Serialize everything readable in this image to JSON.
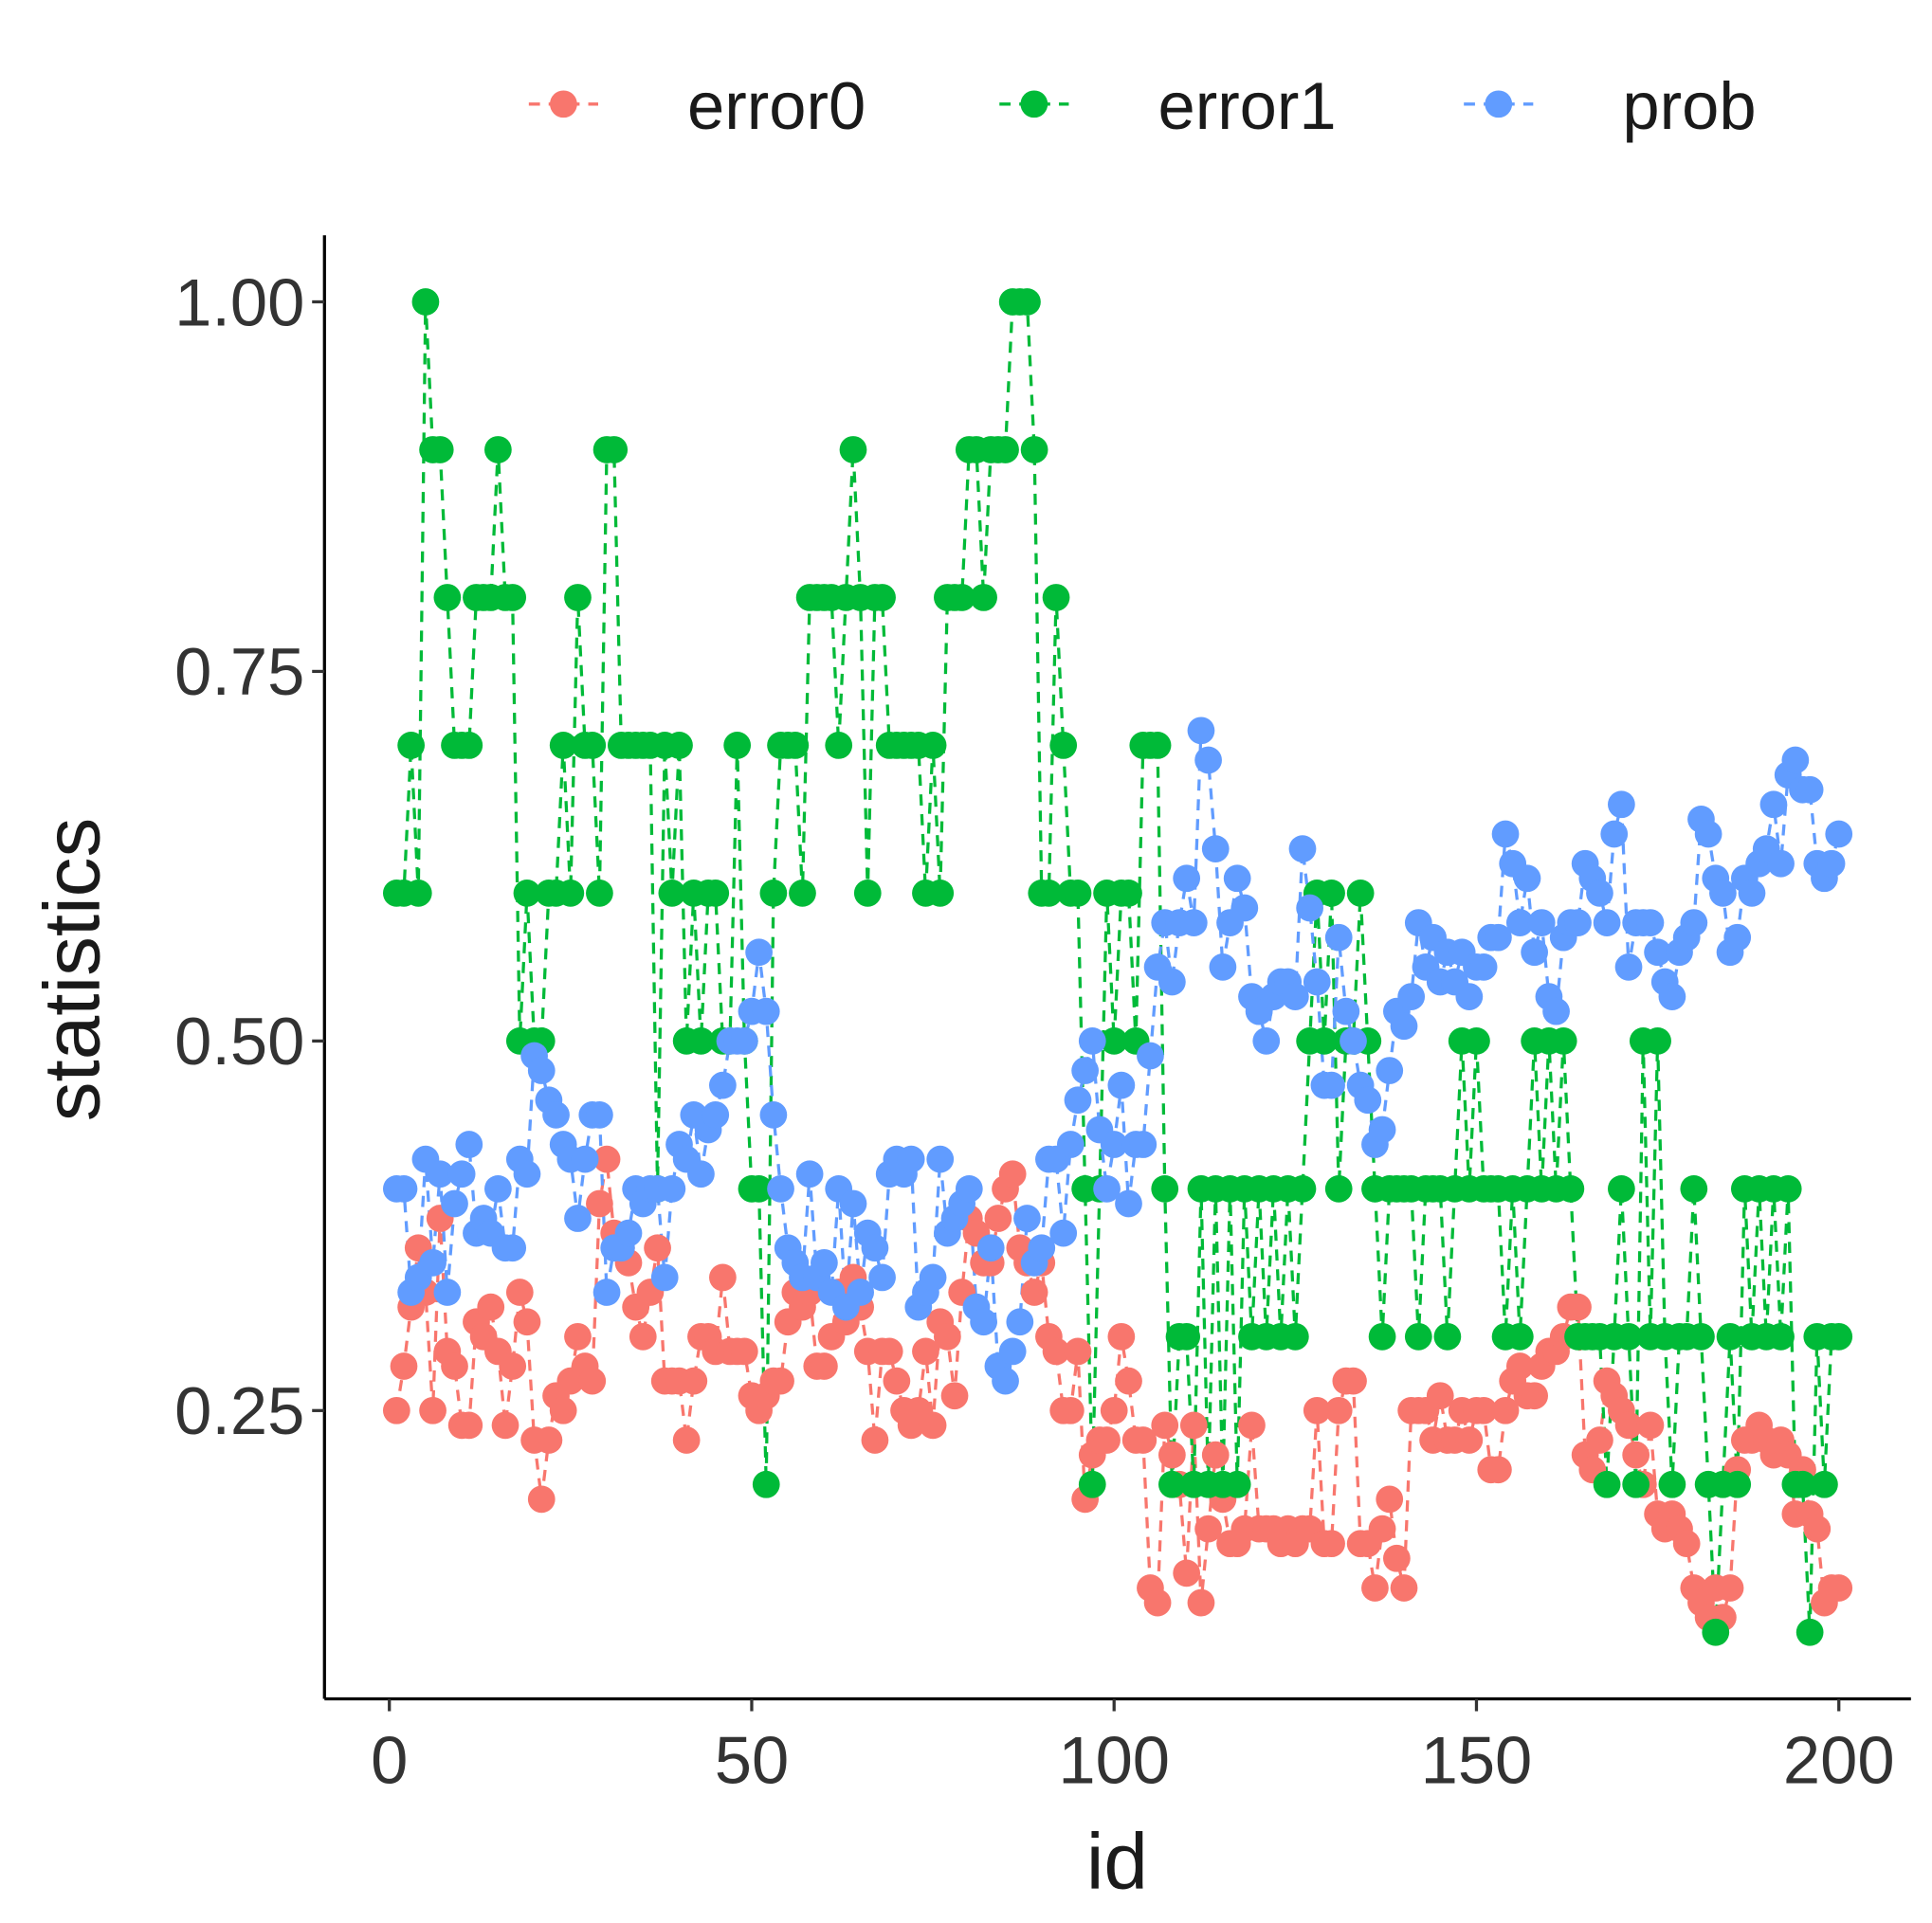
{
  "chart_data": {
    "type": "line",
    "x_label": "id",
    "y_label": "statistics",
    "x": [
      1,
      2,
      3,
      4,
      5,
      6,
      7,
      8,
      9,
      10,
      11,
      12,
      13,
      14,
      15,
      16,
      17,
      18,
      19,
      20,
      21,
      22,
      23,
      24,
      25,
      26,
      27,
      28,
      29,
      30,
      31,
      32,
      33,
      34,
      35,
      36,
      37,
      38,
      39,
      40,
      41,
      42,
      43,
      44,
      45,
      46,
      47,
      48,
      49,
      50,
      51,
      52,
      53,
      54,
      55,
      56,
      57,
      58,
      59,
      60,
      61,
      62,
      63,
      64,
      65,
      66,
      67,
      68,
      69,
      70,
      71,
      72,
      73,
      74,
      75,
      76,
      77,
      78,
      79,
      80,
      81,
      82,
      83,
      84,
      85,
      86,
      87,
      88,
      89,
      90,
      91,
      92,
      93,
      94,
      95,
      96,
      97,
      98,
      99,
      100,
      101,
      102,
      103,
      104,
      105,
      106,
      107,
      108,
      109,
      110,
      111,
      112,
      113,
      114,
      115,
      116,
      117,
      118,
      119,
      120,
      121,
      122,
      123,
      124,
      125,
      126,
      127,
      128,
      129,
      130,
      131,
      132,
      133,
      134,
      135,
      136,
      137,
      138,
      139,
      140,
      141,
      142,
      143,
      144,
      145,
      146,
      147,
      148,
      149,
      150,
      151,
      152,
      153,
      154,
      155,
      156,
      157,
      158,
      159,
      160,
      161,
      162,
      163,
      164,
      165,
      166,
      167,
      168,
      169,
      170,
      171,
      172,
      173,
      174,
      175,
      176,
      177,
      178,
      179,
      180,
      181,
      182,
      183,
      184,
      185,
      186,
      187,
      188,
      189,
      190,
      191,
      192,
      193,
      194,
      195,
      196,
      197,
      198,
      199,
      200
    ],
    "series": [
      {
        "name": "error0",
        "color": "#F8766D",
        "values": [
          0.25,
          0.28,
          0.32,
          0.36,
          0.33,
          0.25,
          0.38,
          0.29,
          0.28,
          0.24,
          0.24,
          0.31,
          0.3,
          0.32,
          0.29,
          0.24,
          0.28,
          0.33,
          0.31,
          0.23,
          0.19,
          0.23,
          0.26,
          0.25,
          0.27,
          0.3,
          0.28,
          0.27,
          0.39,
          0.42,
          0.37,
          0.36,
          0.35,
          0.32,
          0.3,
          0.33,
          0.36,
          0.27,
          0.27,
          0.27,
          0.23,
          0.27,
          0.3,
          0.3,
          0.29,
          0.34,
          0.29,
          0.29,
          0.29,
          0.26,
          0.25,
          0.26,
          0.27,
          0.27,
          0.31,
          0.33,
          0.32,
          0.33,
          0.28,
          0.28,
          0.3,
          0.33,
          0.31,
          0.34,
          0.32,
          0.29,
          0.23,
          0.29,
          0.29,
          0.27,
          0.25,
          0.24,
          0.25,
          0.29,
          0.24,
          0.31,
          0.3,
          0.26,
          0.33,
          0.38,
          0.37,
          0.35,
          0.35,
          0.38,
          0.4,
          0.41,
          0.36,
          0.35,
          0.33,
          0.35,
          0.3,
          0.29,
          0.25,
          0.25,
          0.29,
          0.19,
          0.22,
          0.23,
          0.23,
          0.25,
          0.3,
          0.27,
          0.23,
          0.23,
          0.13,
          0.12,
          0.24,
          0.22,
          0.2,
          0.14,
          0.24,
          0.12,
          0.17,
          0.22,
          0.19,
          0.16,
          0.16,
          0.17,
          0.24,
          0.17,
          0.17,
          0.17,
          0.16,
          0.17,
          0.16,
          0.17,
          0.17,
          0.25,
          0.16,
          0.16,
          0.25,
          0.27,
          0.27,
          0.16,
          0.16,
          0.13,
          0.17,
          0.19,
          0.15,
          0.13,
          0.25,
          0.25,
          0.25,
          0.23,
          0.26,
          0.23,
          0.23,
          0.25,
          0.23,
          0.25,
          0.25,
          0.21,
          0.21,
          0.25,
          0.27,
          0.28,
          0.26,
          0.26,
          0.28,
          0.29,
          0.29,
          0.3,
          0.32,
          0.32,
          0.22,
          0.21,
          0.23,
          0.27,
          0.26,
          0.25,
          0.24,
          0.22,
          0.2,
          0.24,
          0.18,
          0.17,
          0.18,
          0.17,
          0.16,
          0.13,
          0.12,
          0.11,
          0.13,
          0.11,
          0.13,
          0.21,
          0.23,
          0.23,
          0.24,
          0.23,
          0.22,
          0.23,
          0.22,
          0.18,
          0.21,
          0.18,
          0.17,
          0.12,
          0.13,
          0.13
        ]
      },
      {
        "name": "error1",
        "color": "#00BA38",
        "values": [
          0.6,
          0.6,
          0.7,
          0.6,
          1.0,
          0.9,
          0.9,
          0.8,
          0.7,
          0.7,
          0.7,
          0.8,
          0.8,
          0.8,
          0.9,
          0.8,
          0.8,
          0.5,
          0.6,
          0.5,
          0.5,
          0.6,
          0.6,
          0.7,
          0.6,
          0.8,
          0.7,
          0.7,
          0.6,
          0.9,
          0.9,
          0.7,
          0.7,
          0.7,
          0.7,
          0.7,
          0.4,
          0.7,
          0.6,
          0.7,
          0.5,
          0.6,
          0.5,
          0.6,
          0.6,
          0.5,
          0.5,
          0.7,
          0.5,
          0.4,
          0.4,
          0.2,
          0.6,
          0.7,
          0.7,
          0.7,
          0.6,
          0.8,
          0.8,
          0.8,
          0.8,
          0.7,
          0.8,
          0.9,
          0.8,
          0.6,
          0.8,
          0.8,
          0.7,
          0.7,
          0.7,
          0.7,
          0.7,
          0.6,
          0.7,
          0.6,
          0.8,
          0.8,
          0.8,
          0.9,
          0.9,
          0.8,
          0.9,
          0.9,
          0.9,
          1.0,
          1.0,
          1.0,
          0.9,
          0.6,
          0.6,
          0.8,
          0.7,
          0.6,
          0.6,
          0.4,
          0.2,
          0.4,
          0.6,
          0.5,
          0.6,
          0.6,
          0.5,
          0.7,
          0.7,
          0.7,
          0.4,
          0.2,
          0.3,
          0.3,
          0.2,
          0.4,
          0.2,
          0.4,
          0.2,
          0.4,
          0.2,
          0.4,
          0.3,
          0.4,
          0.3,
          0.4,
          0.3,
          0.4,
          0.3,
          0.4,
          0.5,
          0.6,
          0.5,
          0.6,
          0.4,
          0.5,
          0.5,
          0.6,
          0.5,
          0.4,
          0.3,
          0.4,
          0.4,
          0.4,
          0.4,
          0.3,
          0.4,
          0.4,
          0.4,
          0.3,
          0.4,
          0.5,
          0.4,
          0.5,
          0.4,
          0.4,
          0.4,
          0.3,
          0.4,
          0.3,
          0.4,
          0.5,
          0.4,
          0.5,
          0.4,
          0.5,
          0.4,
          0.3,
          0.3,
          0.3,
          0.3,
          0.2,
          0.3,
          0.4,
          0.3,
          0.2,
          0.5,
          0.3,
          0.5,
          0.3,
          0.2,
          0.3,
          0.3,
          0.4,
          0.3,
          0.2,
          0.1,
          0.2,
          0.3,
          0.2,
          0.4,
          0.3,
          0.4,
          0.3,
          0.4,
          0.3,
          0.4,
          0.2,
          0.2,
          0.1,
          0.3,
          0.2,
          0.3,
          0.3
        ]
      },
      {
        "name": "prob",
        "color": "#619CFF",
        "values": [
          0.4,
          0.4,
          0.33,
          0.34,
          0.42,
          0.35,
          0.41,
          0.33,
          0.39,
          0.41,
          0.43,
          0.37,
          0.38,
          0.37,
          0.4,
          0.36,
          0.36,
          0.42,
          0.41,
          0.49,
          0.48,
          0.46,
          0.45,
          0.43,
          0.42,
          0.38,
          0.42,
          0.45,
          0.45,
          0.33,
          0.36,
          0.36,
          0.37,
          0.4,
          0.39,
          0.4,
          0.4,
          0.34,
          0.4,
          0.43,
          0.42,
          0.45,
          0.41,
          0.44,
          0.45,
          0.47,
          0.5,
          0.5,
          0.5,
          0.52,
          0.56,
          0.52,
          0.45,
          0.4,
          0.36,
          0.35,
          0.34,
          0.41,
          0.34,
          0.35,
          0.33,
          0.4,
          0.32,
          0.39,
          0.33,
          0.37,
          0.36,
          0.34,
          0.41,
          0.42,
          0.41,
          0.42,
          0.32,
          0.33,
          0.34,
          0.42,
          0.37,
          0.38,
          0.39,
          0.4,
          0.32,
          0.31,
          0.36,
          0.28,
          0.27,
          0.29,
          0.31,
          0.38,
          0.35,
          0.36,
          0.42,
          0.42,
          0.37,
          0.43,
          0.46,
          0.48,
          0.5,
          0.44,
          0.4,
          0.43,
          0.47,
          0.39,
          0.43,
          0.43,
          0.49,
          0.55,
          0.58,
          0.54,
          0.58,
          0.61,
          0.58,
          0.71,
          0.69,
          0.63,
          0.55,
          0.58,
          0.61,
          0.59,
          0.53,
          0.52,
          0.5,
          0.53,
          0.54,
          0.54,
          0.53,
          0.63,
          0.59,
          0.54,
          0.47,
          0.47,
          0.57,
          0.52,
          0.5,
          0.47,
          0.46,
          0.43,
          0.44,
          0.48,
          0.52,
          0.51,
          0.53,
          0.58,
          0.55,
          0.57,
          0.54,
          0.56,
          0.54,
          0.56,
          0.53,
          0.55,
          0.55,
          0.57,
          0.57,
          0.64,
          0.62,
          0.58,
          0.61,
          0.56,
          0.58,
          0.53,
          0.52,
          0.57,
          0.58,
          0.58,
          0.62,
          0.61,
          0.6,
          0.58,
          0.64,
          0.66,
          0.55,
          0.58,
          0.58,
          0.58,
          0.56,
          0.54,
          0.53,
          0.56,
          0.57,
          0.58,
          0.65,
          0.64,
          0.61,
          0.6,
          0.56,
          0.57,
          0.61,
          0.6,
          0.62,
          0.63,
          0.66,
          0.62,
          0.68,
          0.69,
          0.67,
          0.67,
          0.62,
          0.61,
          0.62,
          0.64
        ]
      }
    ],
    "xlim": [
      -8.95,
      209.95
    ],
    "ylim": [
      0.055,
      1.045
    ],
    "xticks": [
      0,
      50,
      100,
      150,
      200
    ],
    "yticks": [
      0.25,
      {
        "value": 0.5,
        "label": "0.50"
      },
      0.75,
      {
        "value": 1,
        "label": "1.00"
      }
    ],
    "legend": "top",
    "line_style": "dashed"
  }
}
